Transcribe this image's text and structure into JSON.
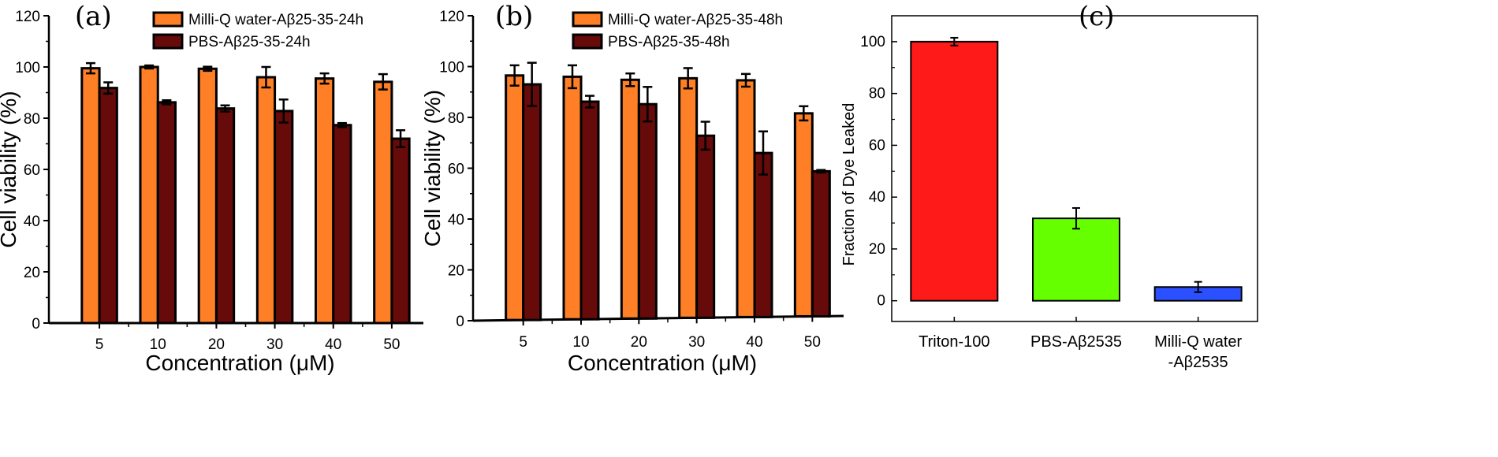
{
  "chart_data": [
    {
      "panel": "(a)",
      "type": "bar",
      "xlabel": "Concentration (μM)",
      "ylabel": "Cell viability (%)",
      "ylim": [
        0,
        120
      ],
      "yticks": [
        0,
        20,
        40,
        60,
        80,
        100,
        120
      ],
      "categories": [
        "5",
        "10",
        "20",
        "30",
        "40",
        "50"
      ],
      "legend_position": "top-center",
      "series": [
        {
          "name": "Milli-Q water-Aβ25-35-24h",
          "color": "#ff7f27",
          "values": [
            99.5,
            100,
            99.3,
            96,
            95.5,
            94.2
          ],
          "errors": [
            2,
            0.6,
            0.8,
            4,
            2,
            3
          ]
        },
        {
          "name": "PBS-Aβ25-35-24h",
          "color": "#660a0a",
          "values": [
            91.8,
            86.2,
            83.8,
            82.8,
            77.3,
            72
          ],
          "errors": [
            2.2,
            0.8,
            1.2,
            4.5,
            0.8,
            3.3
          ]
        }
      ]
    },
    {
      "panel": "(b)",
      "type": "bar",
      "xlabel": "Concentration (μM)",
      "ylabel": "Cell viability (%)",
      "ylim": [
        0,
        120
      ],
      "yticks": [
        0,
        20,
        40,
        60,
        80,
        100,
        120
      ],
      "categories": [
        "5",
        "10",
        "20",
        "30",
        "40",
        "50"
      ],
      "legend_position": "top-center",
      "series": [
        {
          "name": "Milli-Q water-Aβ25-35-48h",
          "color": "#ff7f27",
          "values": [
            96.5,
            96,
            94.8,
            95.4,
            94.6,
            81.6
          ],
          "errors": [
            4,
            4.5,
            2.5,
            4,
            2.5,
            2.8
          ]
        },
        {
          "name": "PBS-Aβ25-35-48h",
          "color": "#660a0a",
          "values": [
            93,
            86.2,
            85.2,
            72.8,
            66,
            58.8
          ],
          "errors": [
            8.5,
            2.3,
            6.8,
            5.5,
            8.5,
            0.5
          ]
        }
      ]
    },
    {
      "panel": "(c)",
      "type": "bar",
      "xlabel": "",
      "ylabel": "Fraction of Dye Leaked",
      "ylim": [
        -8,
        110
      ],
      "yticks": [
        0,
        20,
        40,
        60,
        80,
        100
      ],
      "categories": [
        "Triton-100",
        "PBS-Aβ2535",
        "Milli-Q water|-Aβ2535"
      ],
      "colors": [
        "#ff1a1a",
        "#66ff00",
        "#2b50ff"
      ],
      "values": [
        100,
        31.8,
        5.3
      ],
      "errors": [
        1.5,
        4,
        2
      ]
    }
  ]
}
